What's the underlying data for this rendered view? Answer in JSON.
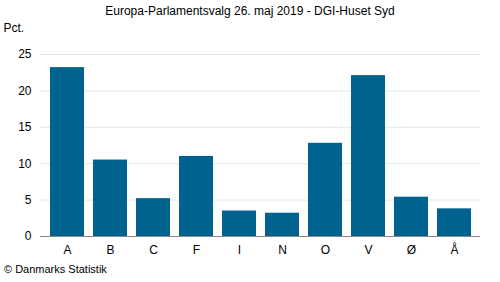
{
  "chart_data": {
    "type": "bar",
    "title": "Europa-Parlamentsvalg 26. maj 2019 - DGI-Huset Syd",
    "caption": "© Danmarks Statistik",
    "y_label": "Pct.",
    "categories": [
      "A",
      "B",
      "C",
      "F",
      "I",
      "N",
      "O",
      "V",
      "Ø",
      "Å"
    ],
    "values": [
      23.2,
      10.5,
      5.2,
      11.0,
      3.5,
      3.2,
      12.8,
      22.1,
      5.4,
      3.8
    ],
    "color": "#00628f",
    "ylim": [
      0,
      25
    ],
    "yticks": [
      0,
      5,
      10,
      15,
      20,
      25
    ],
    "grid": true
  }
}
